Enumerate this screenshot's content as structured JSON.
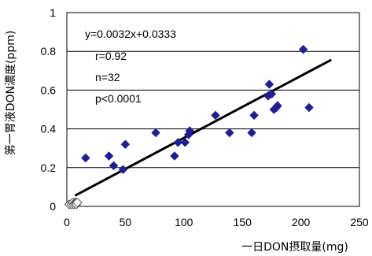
{
  "chart_data": {
    "type": "scatter",
    "xlabel": "一日DON摂取量(mg)",
    "ylabel": "第一胃液DON濃度(ppm)",
    "xlim": [
      0,
      250
    ],
    "ylim": [
      0,
      1
    ],
    "x_ticks": [
      "0",
      "50",
      "100",
      "150",
      "200",
      "250"
    ],
    "y_ticks": [
      "0",
      "0.2",
      "0.4",
      "0.6",
      "0.8",
      "1"
    ],
    "grid": "horizontal",
    "legend": "none",
    "series": [
      {
        "marker": "filled-diamond",
        "color": "#1f1f8f",
        "points": [
          [
            16,
            0.25
          ],
          [
            36,
            0.26
          ],
          [
            40,
            0.21
          ],
          [
            48,
            0.19
          ],
          [
            50,
            0.32
          ],
          [
            76,
            0.38
          ],
          [
            92,
            0.26
          ],
          [
            95,
            0.33
          ],
          [
            101,
            0.33
          ],
          [
            104,
            0.37
          ],
          [
            105,
            0.39
          ],
          [
            127,
            0.47
          ],
          [
            139,
            0.38
          ],
          [
            158,
            0.38
          ],
          [
            160,
            0.47
          ],
          [
            172,
            0.57
          ],
          [
            173,
            0.63
          ],
          [
            175,
            0.58
          ],
          [
            177,
            0.5
          ],
          [
            179,
            0.51
          ],
          [
            180,
            0.52
          ],
          [
            202,
            0.81
          ],
          [
            207,
            0.51
          ]
        ]
      },
      {
        "marker": "open-diamond",
        "color": "#555555",
        "points": [
          [
            2,
            0.01
          ],
          [
            4,
            0.01
          ],
          [
            5,
            0.02
          ],
          [
            6,
            0.01
          ],
          [
            7,
            0.02
          ],
          [
            7,
            0.015
          ],
          [
            8,
            0.02
          ],
          [
            8,
            0.01
          ],
          [
            9,
            0.02
          ]
        ]
      }
    ],
    "trendline": {
      "slope": 0.0032,
      "intercept": 0.0333,
      "x_range": [
        7,
        226
      ]
    },
    "annotations": [
      "y=0.0032x+0.0333",
      "r=0.92",
      "n=32",
      "p<0.0001"
    ],
    "colors": {
      "filled_marker": "#1f1f8f",
      "open_marker": "#555555",
      "trendline": "#000000",
      "grid": "#000000"
    }
  }
}
